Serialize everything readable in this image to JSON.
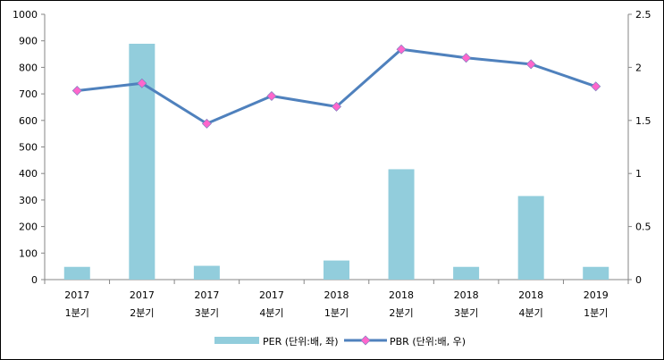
{
  "chart_data": {
    "type": "bar+line",
    "categories": [
      [
        "2017",
        "1분기"
      ],
      [
        "2017",
        "2분기"
      ],
      [
        "2017",
        "3분기"
      ],
      [
        "2017",
        "4분기"
      ],
      [
        "2018",
        "1분기"
      ],
      [
        "2018",
        "2분기"
      ],
      [
        "2018",
        "3분기"
      ],
      [
        "2018",
        "4분기"
      ],
      [
        "2019",
        "1분기"
      ]
    ],
    "series": [
      {
        "name": "PER (단위:배, 좌)",
        "type": "bar",
        "axis": "left",
        "color": "#92CDDC",
        "values": [
          48,
          889,
          52,
          0,
          72,
          416,
          48,
          315,
          48
        ]
      },
      {
        "name": "PBR (단위:배, 우)",
        "type": "line",
        "axis": "right",
        "color": "#4F81BD",
        "marker_color": "#FF66CC",
        "values": [
          1.78,
          1.85,
          1.47,
          1.73,
          1.63,
          2.17,
          2.09,
          2.03,
          1.82
        ]
      }
    ],
    "y_left": {
      "range": [
        0,
        1000
      ],
      "ticks": [
        "0",
        "100",
        "200",
        "300",
        "400",
        "500",
        "600",
        "700",
        "800",
        "900",
        "1000"
      ]
    },
    "y_right": {
      "range": [
        0,
        2.5
      ],
      "ticks": [
        "0",
        "0.5",
        "1",
        "1.5",
        "2",
        "2.5"
      ]
    },
    "grid": false,
    "legend": "bottom"
  }
}
